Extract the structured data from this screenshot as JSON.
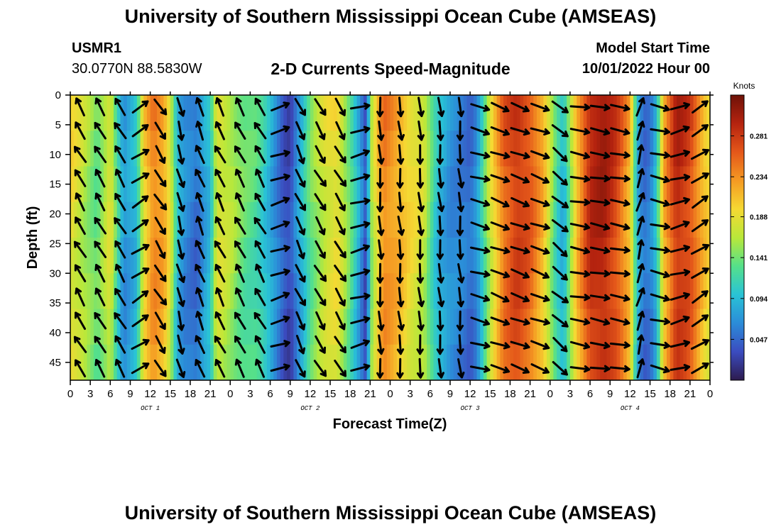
{
  "header": {
    "title": "University of Southern Mississippi Ocean Cube (AMSEAS)",
    "station": "USMR1",
    "coords": "30.0770N  88.5830W",
    "plot_title": "2-D Currents Speed-Magnitude",
    "model_start_label": "Model Start Time",
    "model_start_value": "10/01/2022 Hour 00"
  },
  "footer": {
    "title": "University of Southern Mississippi Ocean Cube (AMSEAS)"
  },
  "chart_data": {
    "type": "heatmap",
    "title": "2-D Currents Speed-Magnitude",
    "xlabel": "Forecast Time(Z)",
    "ylabel": "Depth (ft)",
    "x_ticks": [
      "0",
      "3",
      "6",
      "9",
      "12",
      "15",
      "18",
      "21",
      "0",
      "3",
      "6",
      "9",
      "12",
      "15",
      "18",
      "21",
      "0",
      "3",
      "6",
      "9",
      "12",
      "15",
      "18",
      "21",
      "0",
      "3",
      "6",
      "9",
      "12",
      "15",
      "18",
      "21",
      "0"
    ],
    "x_range_hours": [
      0,
      96
    ],
    "day_labels": [
      {
        "label": "OCT 1",
        "hour": 12
      },
      {
        "label": "OCT 2",
        "hour": 36
      },
      {
        "label": "OCT 3",
        "hour": 60
      },
      {
        "label": "OCT 4",
        "hour": 84
      }
    ],
    "y_ticks": [
      "0",
      "5",
      "10",
      "15",
      "20",
      "25",
      "30",
      "35",
      "40",
      "45"
    ],
    "y_range_ft": [
      0,
      48
    ],
    "colorbar": {
      "label": "Knots",
      "ticks": [
        "0.281",
        "0.234",
        "0.188",
        "0.141",
        "0.094",
        "0.047"
      ],
      "range": [
        0,
        0.328
      ],
      "colors": [
        "#2d1b4e",
        "#3b4cc0",
        "#2b8cd8",
        "#29c3d6",
        "#55e08a",
        "#b9e83a",
        "#f5d933",
        "#f59a23",
        "#e4571a",
        "#b5230f",
        "#6e1208"
      ]
    },
    "speed_profile_knots": [
      [
        0,
        0.2
      ],
      [
        2,
        0.17
      ],
      [
        4,
        0.14
      ],
      [
        6,
        0.19
      ],
      [
        8,
        0.07
      ],
      [
        10,
        0.1
      ],
      [
        11,
        0.2
      ],
      [
        12.5,
        0.25
      ],
      [
        14,
        0.23
      ],
      [
        15,
        0.19
      ],
      [
        16,
        0.1
      ],
      [
        17,
        0.07
      ],
      [
        18,
        0.06
      ],
      [
        19,
        0.05
      ],
      [
        20,
        0.08
      ],
      [
        21,
        0.1
      ],
      [
        22,
        0.19
      ],
      [
        24,
        0.17
      ],
      [
        26,
        0.14
      ],
      [
        28,
        0.13
      ],
      [
        30,
        0.09
      ],
      [
        32,
        0.04
      ],
      [
        33,
        0.03
      ],
      [
        34,
        0.07
      ],
      [
        36,
        0.14
      ],
      [
        38,
        0.18
      ],
      [
        40,
        0.2
      ],
      [
        42,
        0.14
      ],
      [
        43,
        0.1
      ],
      [
        44,
        0.05
      ],
      [
        44.5,
        0.03
      ],
      [
        45,
        0.15
      ],
      [
        47,
        0.25
      ],
      [
        49,
        0.23
      ],
      [
        51,
        0.2
      ],
      [
        53,
        0.18
      ],
      [
        55,
        0.1
      ],
      [
        57,
        0.07
      ],
      [
        59,
        0.06
      ],
      [
        60,
        0.05
      ],
      [
        61,
        0.07
      ],
      [
        63,
        0.18
      ],
      [
        65,
        0.26
      ],
      [
        67,
        0.29
      ],
      [
        69,
        0.27
      ],
      [
        71,
        0.22
      ],
      [
        73,
        0.12
      ],
      [
        74,
        0.09
      ],
      [
        76,
        0.22
      ],
      [
        78,
        0.3
      ],
      [
        80,
        0.31
      ],
      [
        82,
        0.28
      ],
      [
        84,
        0.22
      ],
      [
        85,
        0.1
      ],
      [
        86,
        0.05
      ],
      [
        87,
        0.06
      ],
      [
        88,
        0.1
      ],
      [
        89,
        0.22
      ],
      [
        91,
        0.3
      ],
      [
        93,
        0.28
      ],
      [
        95,
        0.22
      ],
      [
        96,
        0.2
      ]
    ],
    "direction_profile_deg": [
      [
        0,
        -30
      ],
      [
        10,
        -30
      ],
      [
        11,
        145
      ],
      [
        15,
        150
      ],
      [
        17,
        170
      ],
      [
        18,
        175
      ],
      [
        19,
        -20
      ],
      [
        21,
        -25
      ],
      [
        31,
        -30
      ],
      [
        32,
        175
      ],
      [
        33,
        170
      ],
      [
        34,
        160
      ],
      [
        35,
        150
      ],
      [
        43,
        150
      ],
      [
        44,
        0
      ],
      [
        45,
        180
      ],
      [
        47,
        175
      ],
      [
        59,
        175
      ],
      [
        60,
        10
      ],
      [
        61,
        100
      ],
      [
        62,
        110
      ],
      [
        71,
        110
      ],
      [
        72,
        150
      ],
      [
        73,
        160
      ],
      [
        74,
        100
      ],
      [
        84,
        100
      ],
      [
        85,
        10
      ],
      [
        86,
        20
      ],
      [
        87,
        110
      ],
      [
        89,
        100
      ],
      [
        91,
        80
      ],
      [
        93,
        60
      ],
      [
        96,
        55
      ]
    ],
    "arrow_grid": {
      "hours": [
        1.5,
        4.5,
        7.5,
        10.5,
        13.5,
        16.5,
        19.5,
        22.5,
        25.5,
        28.5,
        31.5,
        34.5,
        37.5,
        40.5,
        43.5,
        46.5,
        49.5,
        52.5,
        55.5,
        58.5,
        61.5,
        64.5,
        67.5,
        70.5,
        73.5,
        76.5,
        79.5,
        82.5,
        85.5,
        88.5,
        91.5,
        94.5
      ],
      "depths_ft": [
        2,
        6,
        10,
        14,
        18,
        22,
        26,
        30,
        34,
        38,
        42,
        46
      ]
    }
  }
}
